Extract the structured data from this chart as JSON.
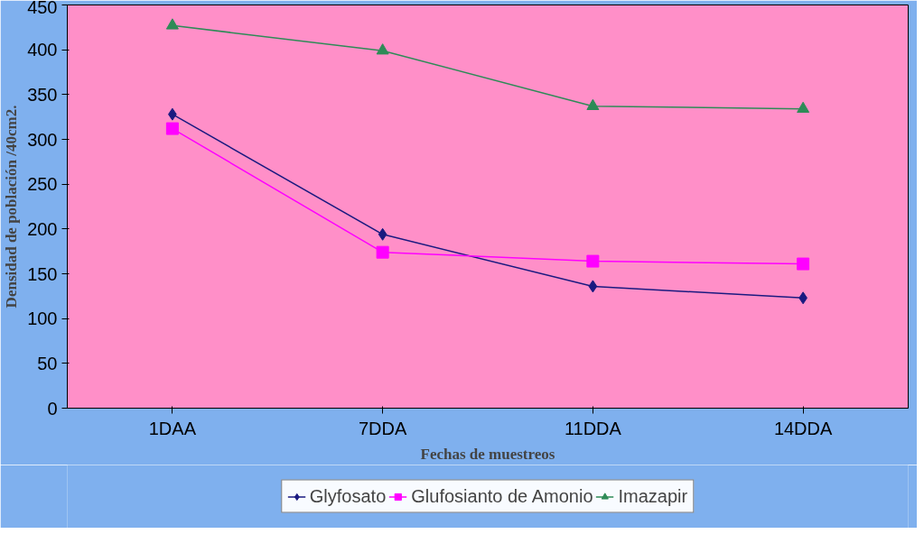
{
  "chart_data": {
    "type": "line",
    "xlabel": "Fechas de muestreos",
    "ylabel": "Densidad de población /40cm2.",
    "categories": [
      "1DAA",
      "7DDA",
      "11DDA",
      "14DDA"
    ],
    "series": [
      {
        "name": "Glyfosato",
        "color": "#1a1a80",
        "marker": "diamond",
        "values": [
          328,
          194,
          136,
          123
        ]
      },
      {
        "name": "Glufosianto de Amonio",
        "color": "#ff00ff",
        "marker": "square",
        "values": [
          312,
          174,
          164,
          161
        ]
      },
      {
        "name": "Imazapir",
        "color": "#2e8b57",
        "marker": "triangle",
        "values": [
          427,
          399,
          337,
          334
        ]
      }
    ],
    "ylim": [
      0,
      450
    ],
    "yticks": [
      0,
      50,
      100,
      150,
      200,
      250,
      300,
      350,
      400,
      450
    ],
    "grid": false,
    "legend": "bottom"
  }
}
